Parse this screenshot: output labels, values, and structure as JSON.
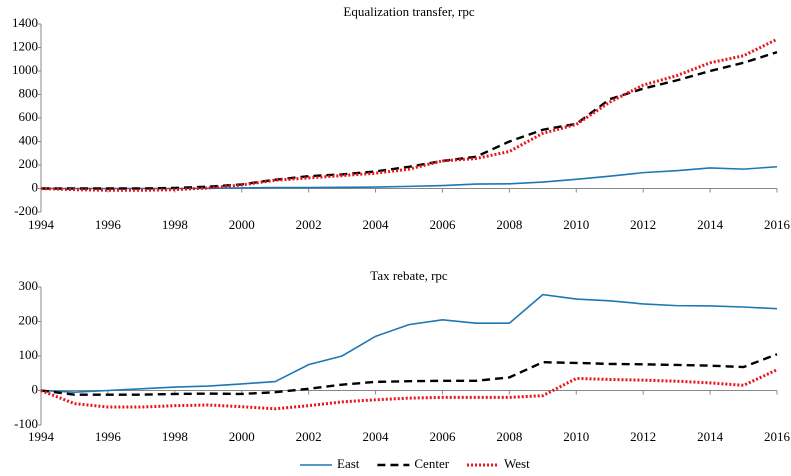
{
  "chart_data": [
    {
      "type": "line",
      "title": "Equalization transfer, rpc",
      "x": [
        1994,
        1995,
        1996,
        1997,
        1998,
        1999,
        2000,
        2001,
        2002,
        2003,
        2004,
        2005,
        2006,
        2007,
        2008,
        2009,
        2010,
        2011,
        2012,
        2013,
        2014,
        2015,
        2016
      ],
      "xlim": [
        1994,
        2016
      ],
      "xticks": [
        1994,
        1996,
        1998,
        2000,
        2002,
        2004,
        2006,
        2008,
        2010,
        2012,
        2014,
        2016
      ],
      "ylim": [
        -200,
        1400
      ],
      "yticks": [
        -200,
        0,
        200,
        400,
        600,
        800,
        1000,
        1200,
        1400
      ],
      "series": [
        {
          "name": "East",
          "color": "#1f77b4",
          "style": "solid",
          "values": [
            0,
            0,
            0,
            0,
            0,
            2,
            5,
            8,
            8,
            10,
            12,
            18,
            25,
            38,
            40,
            55,
            78,
            105,
            135,
            152,
            175,
            165,
            185
          ]
        },
        {
          "name": "Center",
          "color": "#000000",
          "style": "dashed",
          "values": [
            0,
            0,
            0,
            0,
            5,
            15,
            35,
            75,
            105,
            120,
            145,
            185,
            235,
            270,
            400,
            500,
            550,
            760,
            850,
            920,
            1000,
            1070,
            1160
          ]
        },
        {
          "name": "West",
          "color": "#e8141c",
          "style": "dotted",
          "values": [
            0,
            -10,
            -15,
            -15,
            -10,
            5,
            30,
            70,
            90,
            110,
            130,
            165,
            235,
            255,
            315,
            470,
            545,
            735,
            880,
            960,
            1070,
            1130,
            1270
          ]
        }
      ]
    },
    {
      "type": "line",
      "title": "Tax rebate, rpc",
      "x": [
        1994,
        1995,
        1996,
        1997,
        1998,
        1999,
        2000,
        2001,
        2002,
        2003,
        2004,
        2005,
        2006,
        2007,
        2008,
        2009,
        2010,
        2011,
        2012,
        2013,
        2014,
        2015,
        2016
      ],
      "xlim": [
        1994,
        2016
      ],
      "xticks": [
        1994,
        1996,
        1998,
        2000,
        2002,
        2004,
        2006,
        2008,
        2010,
        2012,
        2014,
        2016
      ],
      "ylim": [
        -100,
        300
      ],
      "yticks": [
        -100,
        0,
        100,
        200,
        300
      ],
      "series": [
        {
          "color": "#1f77b4",
          "style": "solid",
          "values": [
            0,
            -5,
            0,
            5,
            10,
            13,
            19,
            26,
            75,
            100,
            157,
            191,
            205,
            195,
            195,
            278,
            265,
            260,
            251,
            246,
            245,
            242,
            237
          ]
        },
        {
          "color": "#000000",
          "style": "dashed",
          "values": [
            0,
            -12,
            -12,
            -12,
            -10,
            -9,
            -10,
            -5,
            5,
            17,
            25,
            27,
            28,
            28,
            38,
            82,
            80,
            77,
            76,
            74,
            72,
            68,
            105
          ]
        },
        {
          "color": "#e8141c",
          "style": "dotted",
          "values": [
            0,
            -38,
            -48,
            -48,
            -44,
            -42,
            -47,
            -53,
            -44,
            -33,
            -27,
            -22,
            -20,
            -20,
            -20,
            -15,
            35,
            32,
            30,
            27,
            22,
            15,
            60
          ]
        }
      ]
    }
  ]
}
